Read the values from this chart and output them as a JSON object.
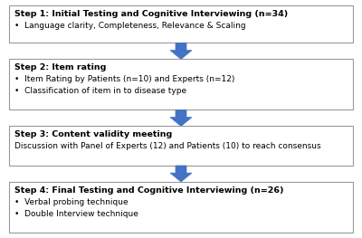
{
  "steps": [
    {
      "title": "Step 1: Initial Testing and Cognitive Interviewing (n=34)",
      "bullets": [
        "•  Language clarity, Completeness, Relevance & Scaling"
      ],
      "no_bullet_prefix": false
    },
    {
      "title": "Step 2: Item rating",
      "bullets": [
        "•  Item Rating by Patients (n=10) and Experts (n=12)",
        "•  Classification of item in to disease type"
      ],
      "no_bullet_prefix": false
    },
    {
      "title": "Step 3: Content validity meeting",
      "bullets": [
        "Discussion with Panel of Experts (12) and Patients (10) to reach consensus"
      ],
      "no_bullet_prefix": true
    },
    {
      "title": "Step 4: Final Testing and Cognitive Interviewing (n=26)",
      "bullets": [
        "•  Verbal probing technique",
        "•  Double Interview technique"
      ],
      "no_bullet_prefix": false
    }
  ],
  "box_border_color": "#999999",
  "box_fill_color": "#ffffff",
  "arrow_color": "#4472C4",
  "title_fontsize": 6.8,
  "bullet_fontsize": 6.5,
  "background_color": "#ffffff",
  "fig_width": 4.0,
  "fig_height": 2.63,
  "dpi": 100
}
